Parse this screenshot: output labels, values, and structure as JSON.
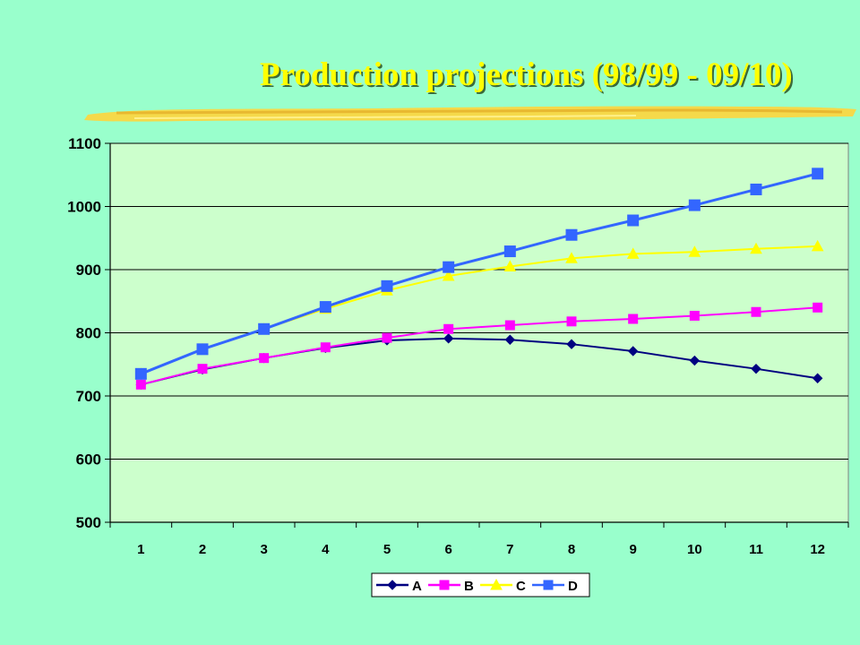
{
  "slide": {
    "title": "Production projections (98/99 - 09/10)"
  },
  "colors": {
    "background": "#99ffcc",
    "plot_area": "#ccffcc",
    "title": "#ffff00",
    "underline": "#f5d94a"
  },
  "chart_data": {
    "type": "line",
    "title": "",
    "xlabel": "",
    "ylabel": "",
    "categories": [
      "1",
      "2",
      "3",
      "4",
      "5",
      "6",
      "7",
      "8",
      "9",
      "10",
      "11",
      "12"
    ],
    "ylim": [
      500,
      1100
    ],
    "yticks": [
      500,
      600,
      700,
      800,
      900,
      1000,
      1100
    ],
    "grid": true,
    "legend_position": "bottom",
    "series": [
      {
        "name": "A",
        "color": "#000080",
        "marker": "diamond",
        "values": [
          718,
          742,
          760,
          776,
          788,
          791,
          789,
          782,
          771,
          756,
          743,
          728
        ]
      },
      {
        "name": "B",
        "color": "#ff00ff",
        "marker": "square",
        "values": [
          718,
          743,
          760,
          777,
          792,
          806,
          812,
          818,
          822,
          827,
          833,
          840
        ]
      },
      {
        "name": "C",
        "color": "#ffff00",
        "marker": "triangle",
        "values": [
          735,
          774,
          806,
          838,
          867,
          890,
          905,
          918,
          925,
          928,
          933,
          937
        ]
      },
      {
        "name": "D",
        "color": "#3366ff",
        "marker": "square",
        "values": [
          735,
          774,
          806,
          841,
          874,
          904,
          929,
          955,
          978,
          1002,
          1027,
          1052
        ]
      }
    ]
  }
}
